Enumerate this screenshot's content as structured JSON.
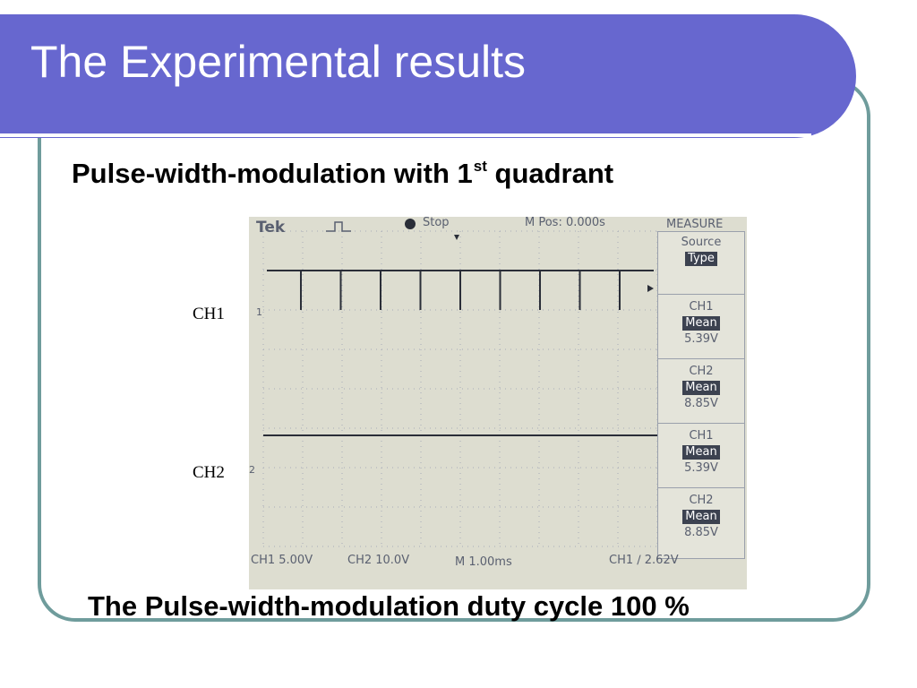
{
  "slide": {
    "title": "The Experimental results",
    "subtitle": "Pulse-width-modulation with 1",
    "subtitle_sup": "st",
    "subtitle_tail": " quadrant",
    "caption": "The Pulse-width-modulation duty cycle 100 %",
    "ch1_label": "CH1",
    "ch2_label": "CH2"
  },
  "scope": {
    "brand": "Tek",
    "status": "Stop",
    "mpos": "M Pos: 0.000s",
    "menu_title": "MEASURE",
    "menu": [
      {
        "line1": "Source",
        "line2": "Type",
        "line3": ""
      },
      {
        "line1": "CH1",
        "line2": "Mean",
        "line3": "5.39V"
      },
      {
        "line1": "CH2",
        "line2": "Mean",
        "line3": "8.85V"
      },
      {
        "line1": "CH1",
        "line2": "Mean",
        "line3": "5.39V"
      },
      {
        "line1": "CH2",
        "line2": "Mean",
        "line3": "8.85V"
      }
    ],
    "marker1": "1",
    "marker2": "2",
    "bottom": {
      "ch1_scale": "CH1  5.00V",
      "ch2_scale": "CH2  10.0V",
      "timebase": "M 1.00ms",
      "trigger": "CH1  ∕  2.62V"
    }
  },
  "colors": {
    "title_band": "#6767cf",
    "frame": "#6f9c9c",
    "scope_bg": "#ddddd0",
    "trace": "#2a2e38"
  }
}
